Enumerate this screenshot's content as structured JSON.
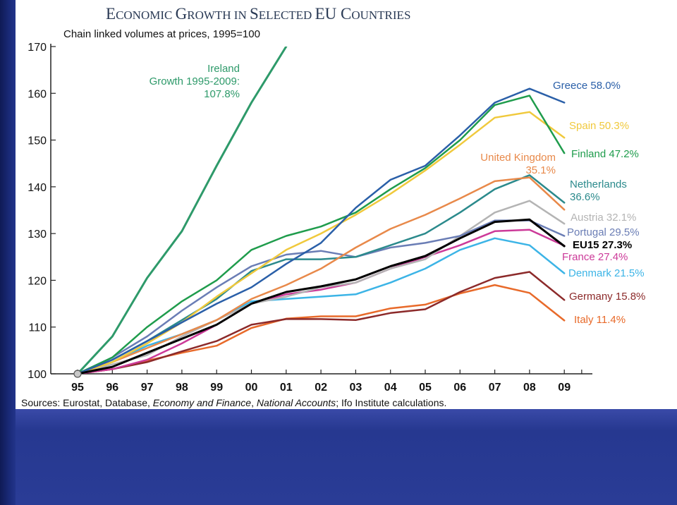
{
  "chart_data": {
    "type": "line",
    "title_parts": [
      {
        "text": "E",
        "big": true
      },
      {
        "text": "CONOMIC ",
        "big": false
      },
      {
        "text": "G",
        "big": true
      },
      {
        "text": "ROWTH IN ",
        "big": false
      },
      {
        "text": "S",
        "big": true
      },
      {
        "text": "ELECTED ",
        "big": false
      },
      {
        "text": "EU C",
        "big": true
      },
      {
        "text": "OUNTRIES",
        "big": false
      }
    ],
    "subtitle": "Chain linked volumes at prices, 1995=100",
    "source_parts": [
      {
        "text": "Sources: Eurostat, Database, ",
        "italic": false
      },
      {
        "text": "Economy and Finance",
        "italic": true
      },
      {
        "text": ", ",
        "italic": false
      },
      {
        "text": "National Accounts",
        "italic": true
      },
      {
        "text": "; Ifo Institute calculations.",
        "italic": false
      }
    ],
    "x_ticks": [
      "95",
      "96",
      "97",
      "98",
      "99",
      "00",
      "01",
      "02",
      "03",
      "04",
      "05",
      "06",
      "07",
      "08",
      "09"
    ],
    "ylim": [
      100,
      170
    ],
    "y_ticks": [
      100,
      110,
      120,
      130,
      140,
      150,
      160,
      170
    ],
    "grid": false,
    "series": [
      {
        "name": "Ireland",
        "color": "#2e9a6a",
        "width": 3,
        "values": [
          100,
          108,
          120.5,
          130.5,
          144.5,
          158,
          170
        ],
        "label_lines": [
          "Ireland",
          "Growth 1995-2009:",
          "107.8%"
        ],
        "label_align": "end"
      },
      {
        "name": "Greece",
        "color": "#2a5fa8",
        "width": 2.5,
        "values": [
          100,
          103,
          107,
          111,
          115,
          118.5,
          123.5,
          128,
          135.5,
          141.5,
          144.5,
          151,
          158,
          161,
          158
        ],
        "label_lines": [
          "Greece 58.0%"
        ],
        "label_align": "start"
      },
      {
        "name": "Spain",
        "color": "#f0c93c",
        "width": 2.5,
        "values": [
          100,
          102.5,
          106.5,
          111,
          116.5,
          121.5,
          126.5,
          130,
          134,
          138.5,
          143.5,
          149,
          154.8,
          156,
          150.5
        ],
        "label_lines": [
          "Spain  50.3%"
        ],
        "label_align": "start"
      },
      {
        "name": "Finland",
        "color": "#1f9c4c",
        "width": 2.5,
        "values": [
          100,
          103.5,
          110,
          115.5,
          120,
          126.5,
          129.5,
          131.5,
          134.5,
          139.5,
          144,
          150,
          157.5,
          159.5,
          147.2
        ],
        "label_lines": [
          "Finland 47.2%"
        ],
        "label_align": "start"
      },
      {
        "name": "United Kingdom",
        "color": "#e8894a",
        "width": 2.5,
        "values": [
          100,
          102.5,
          105.5,
          108.5,
          111.5,
          116,
          119,
          122.5,
          127,
          131,
          134,
          137.5,
          141.2,
          142,
          135.1
        ],
        "label_lines": [
          "United Kingdom",
          "35.1%"
        ],
        "label_align": "end"
      },
      {
        "name": "Netherlands",
        "color": "#2b8a8c",
        "width": 2.5,
        "values": [
          100,
          103,
          107,
          111.5,
          116,
          122,
          124.5,
          124.5,
          125,
          127.5,
          130,
          134.5,
          139.5,
          142.5,
          136.6
        ],
        "label_lines": [
          "Netherlands",
          "36.6%"
        ],
        "label_align": "start"
      },
      {
        "name": "Austria",
        "color": "#b4b4b4",
        "width": 2.5,
        "values": [
          100,
          102,
          104,
          108,
          111.5,
          115,
          116.5,
          118.5,
          119.5,
          122.5,
          124.5,
          129.5,
          134.5,
          137,
          132.1
        ],
        "label_lines": [
          "Austria 32.1%"
        ],
        "label_align": "start"
      },
      {
        "name": "Portugal",
        "color": "#6a7db5",
        "width": 2.5,
        "values": [
          100,
          103.5,
          108,
          113.5,
          118.5,
          123,
          125.5,
          126.3,
          125,
          127,
          128,
          129.5,
          132.8,
          132.8,
          129.5
        ],
        "label_lines": [
          "Portugal 29.5%"
        ],
        "label_align": "start"
      },
      {
        "name": "EU15",
        "color": "#000000",
        "width": 3,
        "values": [
          100,
          101.5,
          104.5,
          107.5,
          110.5,
          115,
          117.5,
          118.7,
          120.2,
          123,
          125.2,
          129,
          132.5,
          133,
          127.3
        ],
        "label_lines": [
          "EU15 27.3%"
        ],
        "label_align": "start",
        "bold": true
      },
      {
        "name": "France",
        "color": "#cc3a99",
        "width": 2.5,
        "values": [
          100,
          101,
          103,
          106.5,
          110.5,
          115,
          117,
          118,
          119.5,
          122.5,
          125,
          127.5,
          130.5,
          130.8,
          127.4
        ],
        "label_lines": [
          "France 27.4%"
        ],
        "label_align": "start"
      },
      {
        "name": "Denmark",
        "color": "#3cb4e6",
        "width": 2.5,
        "values": [
          100,
          102.5,
          106,
          108.5,
          111.5,
          115.5,
          116,
          116.5,
          117,
          119.5,
          122.5,
          126.5,
          129,
          127.5,
          121.5
        ],
        "label_lines": [
          "Denmark 21.5%"
        ],
        "label_align": "start"
      },
      {
        "name": "Germany",
        "color": "#8c2a2a",
        "width": 2.5,
        "values": [
          100,
          101,
          102.5,
          104.8,
          107,
          110.5,
          111.7,
          111.7,
          111.5,
          113,
          113.8,
          117.5,
          120.5,
          121.8,
          115.8
        ],
        "label_lines": [
          "Germany 15.8%"
        ],
        "label_align": "start"
      },
      {
        "name": "Italy",
        "color": "#e86a2a",
        "width": 2.5,
        "values": [
          100,
          101,
          102.8,
          104.5,
          106,
          109.8,
          111.8,
          112.3,
          112.3,
          114,
          114.8,
          117.2,
          119,
          117.3,
          111.4
        ],
        "label_lines": [
          "Italy 11.4%"
        ],
        "label_align": "start"
      }
    ]
  }
}
